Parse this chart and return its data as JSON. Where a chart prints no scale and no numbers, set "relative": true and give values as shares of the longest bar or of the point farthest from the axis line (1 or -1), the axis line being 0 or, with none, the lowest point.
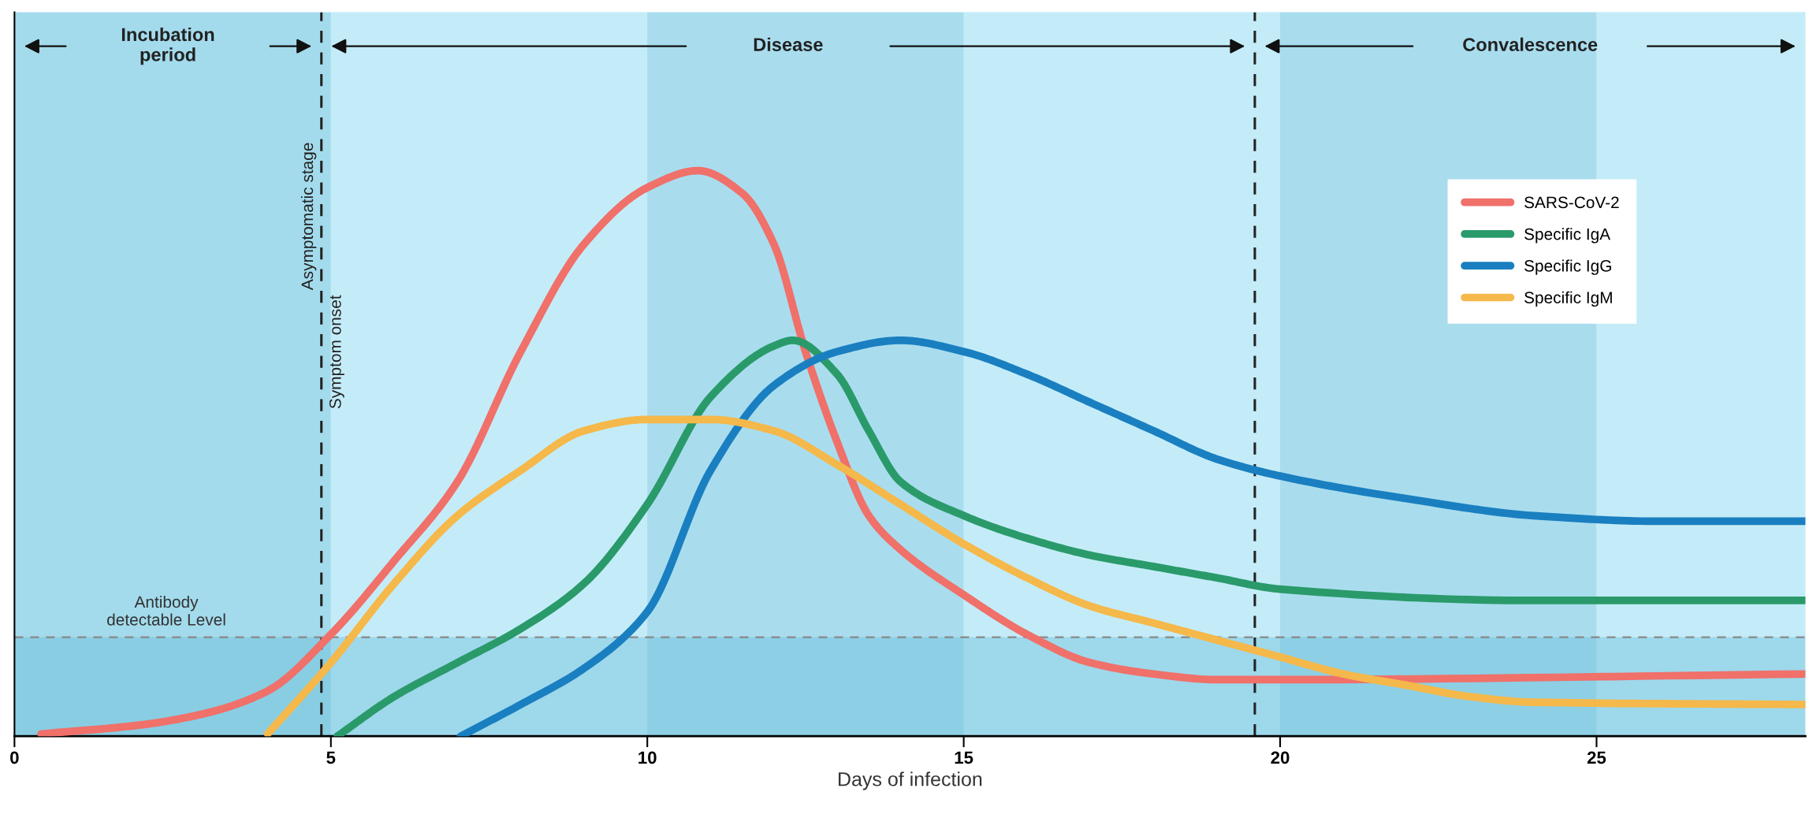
{
  "chart_data": {
    "type": "line",
    "relative": true,
    "xlabel": "Days of infection",
    "xlim": [
      0,
      28.3
    ],
    "xticks": [
      0,
      5,
      10,
      15,
      20,
      25
    ],
    "series": [
      {
        "name": "SARS-CoV-2",
        "color": "#f0706a",
        "x": [
          0.42,
          2,
          3,
          4,
          5,
          6,
          7,
          8,
          9,
          10,
          10.8,
          11.5,
          12,
          12.5,
          13,
          13.5,
          14,
          15,
          16,
          17,
          18,
          19,
          20,
          28.3
        ],
        "values": [
          0.004,
          0.02,
          0.04,
          0.08,
          0.18,
          0.31,
          0.45,
          0.68,
          0.87,
          0.97,
          1.0,
          0.96,
          0.87,
          0.68,
          0.52,
          0.39,
          0.33,
          0.25,
          0.18,
          0.13,
          0.11,
          0.1,
          0.1,
          0.11
        ]
      },
      {
        "name": "Specific IgA",
        "color": "#2a9a6a",
        "x": [
          5.1,
          6,
          7,
          8,
          9,
          10,
          11,
          12,
          12.3,
          13,
          13.5,
          14,
          15,
          16,
          17,
          18,
          19,
          20,
          24,
          28.3
        ],
        "values": [
          0,
          0.07,
          0.13,
          0.19,
          0.27,
          0.41,
          0.6,
          0.69,
          0.7,
          0.64,
          0.54,
          0.45,
          0.39,
          0.35,
          0.32,
          0.3,
          0.28,
          0.26,
          0.24,
          0.24
        ]
      },
      {
        "name": "Specific IgG",
        "color": "#1a7fc0",
        "x": [
          7.05,
          8,
          9,
          10,
          11,
          12,
          13,
          14,
          15,
          16,
          17,
          18,
          19,
          20,
          22,
          24,
          26,
          28.3
        ],
        "values": [
          0,
          0.056,
          0.12,
          0.22,
          0.47,
          0.62,
          0.68,
          0.7,
          0.68,
          0.64,
          0.59,
          0.54,
          0.49,
          0.46,
          0.42,
          0.39,
          0.38,
          0.38
        ]
      },
      {
        "name": "Specific IgM",
        "color": "#f5b84a",
        "x": [
          4,
          5,
          6,
          7,
          8,
          9,
          10,
          11,
          12,
          13,
          14,
          15,
          16,
          17,
          18,
          19,
          20,
          21,
          22,
          23,
          24,
          28.3
        ],
        "values": [
          0.004,
          0.13,
          0.27,
          0.39,
          0.47,
          0.54,
          0.56,
          0.56,
          0.54,
          0.48,
          0.41,
          0.34,
          0.28,
          0.23,
          0.2,
          0.17,
          0.14,
          0.11,
          0.09,
          0.07,
          0.06,
          0.056
        ]
      }
    ],
    "bands": [
      {
        "axis": "x",
        "from": 0,
        "to": 5,
        "color": "#a3dbec"
      },
      {
        "axis": "x",
        "from": 5,
        "to": 10,
        "color": "#c4ecf8"
      },
      {
        "axis": "x",
        "from": 10,
        "to": 15,
        "color": "#a9ddee"
      },
      {
        "axis": "x",
        "from": 15,
        "to": 20,
        "color": "#c4ecf8"
      },
      {
        "axis": "x",
        "from": 20,
        "to": 25,
        "color": "#a9ddee"
      },
      {
        "axis": "x",
        "from": 25,
        "to": 28.3,
        "color": "#c4ecf8"
      },
      {
        "axis": "y",
        "from": 0,
        "to": 0.175,
        "color": "#5ab4d4"
      }
    ],
    "ref_lines": [
      {
        "axis": "x",
        "value": 4.85,
        "label": "Asymptomatic stage",
        "color": "#222222",
        "line_style": "dashed"
      },
      {
        "axis": "x",
        "value": 19.6,
        "color": "#222222",
        "line_style": "dashed"
      },
      {
        "axis": "y",
        "value": 0.175,
        "label": "Antibody\ndetectable Level",
        "color": "#888888",
        "line_style": "dashed"
      }
    ],
    "annotations": [
      "Incubation\nperiod",
      "Disease",
      "Convalescence",
      {
        "text": "Symptom onset",
        "x": 4.85,
        "y": 0.78
      }
    ],
    "legend": "top right",
    "grid": false,
    "line_style": "solid",
    "marker": "none"
  }
}
